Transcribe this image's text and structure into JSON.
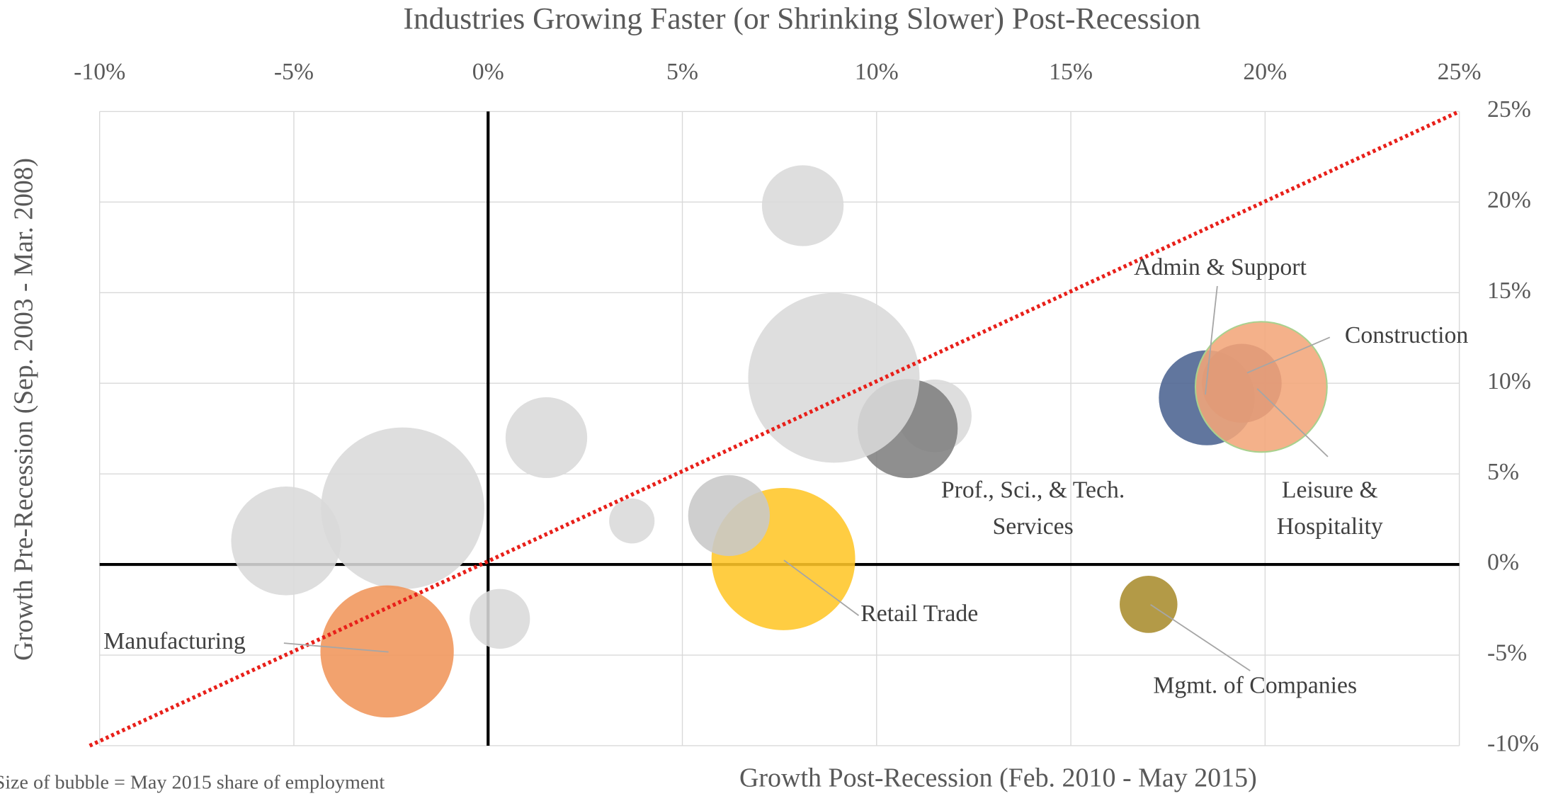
{
  "chart_data": {
    "type": "bubble",
    "title": "Industries Growing Faster (or Shrinking Slower) Post-Recession",
    "x_label": "Growth Post-Recession (Feb. 2010 - May 2015)",
    "y_label": "Growth Pre-Recession (Sep. 2003 - Mar. 2008)",
    "note": "Size of bubble = May 2015 share of employment",
    "xlim": [
      -10,
      25
    ],
    "ylim": [
      -10,
      25
    ],
    "xticks": [
      {
        "value": -10,
        "label": "-10%"
      },
      {
        "value": -5,
        "label": "-5%"
      },
      {
        "value": 0,
        "label": "0%"
      },
      {
        "value": 5,
        "label": "5%"
      },
      {
        "value": 10,
        "label": "10%"
      },
      {
        "value": 15,
        "label": "15%"
      },
      {
        "value": 20,
        "label": "20%"
      },
      {
        "value": 25,
        "label": "25%"
      }
    ],
    "yticks": [
      {
        "value": -10,
        "label": "-10%"
      },
      {
        "value": -5,
        "label": "-5%"
      },
      {
        "value": 0,
        "label": "0%"
      },
      {
        "value": 5,
        "label": "5%"
      },
      {
        "value": 10,
        "label": "10%"
      },
      {
        "value": 15,
        "label": "15%"
      },
      {
        "value": 20,
        "label": "20%"
      },
      {
        "value": 25,
        "label": "25%"
      }
    ],
    "grid": true,
    "identity_line": true,
    "identity_line_color": "#e8201a",
    "points": [
      {
        "name": null,
        "color": "#d9d9d9",
        "x": 8.1,
        "y": 19.8,
        "size": 4.2
      },
      {
        "name": null,
        "color": "#d9d9d9",
        "x": 11.5,
        "y": 8.2,
        "size": 3.4
      },
      {
        "name": [
          "Prof., Sci., & Tech.",
          "Services"
        ],
        "color": "#7f7f7f",
        "x": 10.8,
        "y": 7.5,
        "size": 6.3
      },
      {
        "name": null,
        "color": "#d9d9d9",
        "x": 8.9,
        "y": 10.3,
        "size": 18.5
      },
      {
        "name": null,
        "color": "#d9d9d9",
        "x": 1.5,
        "y": 7.0,
        "size": 4.2
      },
      {
        "name": null,
        "color": "#d9d9d9",
        "x": -5.2,
        "y": 1.3,
        "size": 7.6
      },
      {
        "name": null,
        "color": "#d9d9d9",
        "x": -2.2,
        "y": 3.1,
        "size": 16.8
      },
      {
        "name": null,
        "color": "#d9d9d9",
        "x": 3.7,
        "y": 2.4,
        "size": 1.3
      },
      {
        "name": [
          "Retail Trade"
        ],
        "color": "#ffc628",
        "x": 7.6,
        "y": 0.3,
        "size": 13.0
      },
      {
        "name": null,
        "color": "#c8c8c8",
        "x": 6.2,
        "y": 2.7,
        "size": 4.2
      },
      {
        "name": null,
        "color": "#d9d9d9",
        "x": 0.3,
        "y": -3.0,
        "size": 2.3
      },
      {
        "name": [
          "Manufacturing"
        ],
        "color": "#f0955a",
        "x": -2.6,
        "y": -4.8,
        "size": 11.2
      },
      {
        "name": [
          "Mgmt. of Companies"
        ],
        "color": "#a88c2e",
        "x": 17.0,
        "y": -2.2,
        "size": 2.1
      },
      {
        "name": [
          "Admin & Support"
        ],
        "color": "#4b6391",
        "x": 18.5,
        "y": 9.2,
        "size": 5.8
      },
      {
        "name": [
          "Leisure &",
          "Hospitality"
        ],
        "color": "#f2a67a",
        "x": 19.9,
        "y": 9.8,
        "size": 10.9
      },
      {
        "name": [
          "Construction"
        ],
        "color": "#e09a78",
        "x": 19.4,
        "y": 10.0,
        "size": 4.0
      }
    ]
  }
}
